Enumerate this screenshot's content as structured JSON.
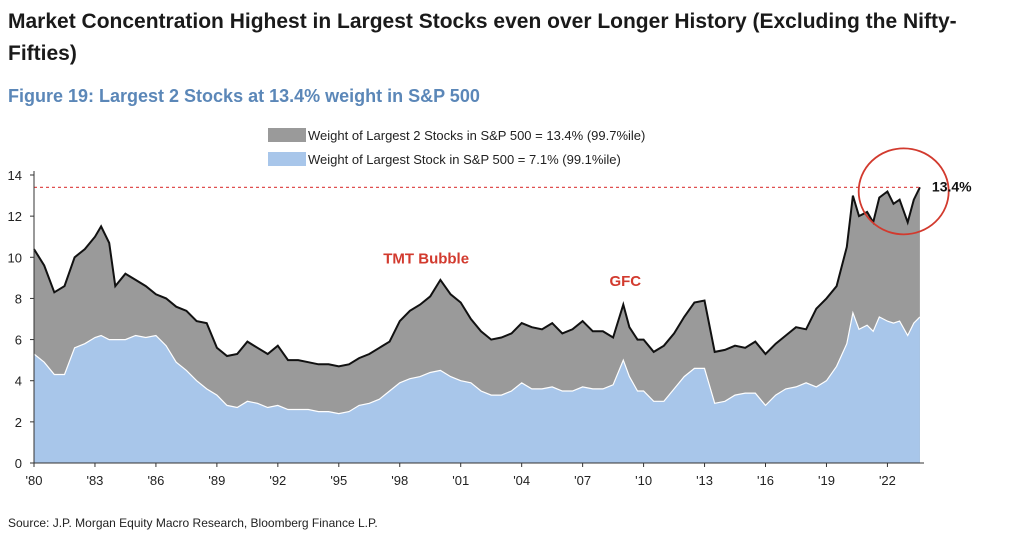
{
  "headline": "Market Concentration Highest in Largest Stocks even over Longer History (Excluding the Nifty-Fifties)",
  "figure_title": "Figure 19: Largest 2 Stocks at 13.4% weight in S&P 500",
  "source": "Source: J.P. Morgan Equity Macro Research, Bloomberg Finance L.P.",
  "colors": {
    "top2_fill": "#9a9a9a",
    "top1_fill": "#a8c6ea",
    "top2_line": "#111111",
    "top1_line": "#ffffff",
    "reference_line": "#e05050",
    "circle": "#d23a2e",
    "annotation": "#d23a2e"
  },
  "chart_data": {
    "type": "area",
    "x_tick_labels": [
      "'80",
      "'83",
      "'86",
      "'89",
      "'92",
      "'95",
      "'98",
      "'01",
      "'04",
      "'07",
      "'10",
      "'13",
      "'16",
      "'19",
      "'22"
    ],
    "x_tick_years": [
      1980,
      1983,
      1986,
      1989,
      1992,
      1995,
      1998,
      2001,
      2004,
      2007,
      2010,
      2013,
      2016,
      2019,
      2022
    ],
    "xlim": [
      1980,
      2023.8
    ],
    "ylim": [
      0,
      14
    ],
    "y_ticks": [
      0,
      2,
      4,
      6,
      8,
      10,
      12,
      14
    ],
    "grid": false,
    "legend_position": "top-center",
    "reference_value": 13.4,
    "reference_label": "13.4%",
    "annotations": [
      {
        "text": "TMT Bubble",
        "x": 1999.3,
        "y": 9.7
      },
      {
        "text": "GFC",
        "x": 2009.1,
        "y": 8.6
      }
    ],
    "x": [
      1980,
      1980.5,
      1981,
      1981.5,
      1982,
      1982.5,
      1983,
      1983.3,
      1983.7,
      1984,
      1984.5,
      1985,
      1985.5,
      1986,
      1986.5,
      1987,
      1987.5,
      1988,
      1988.5,
      1989,
      1989.5,
      1990,
      1990.5,
      1991,
      1991.5,
      1992,
      1992.5,
      1993,
      1993.5,
      1994,
      1994.5,
      1995,
      1995.5,
      1996,
      1996.5,
      1997,
      1997.5,
      1998,
      1998.5,
      1999,
      1999.5,
      2000,
      2000.5,
      2001,
      2001.5,
      2002,
      2002.5,
      2003,
      2003.5,
      2004,
      2004.5,
      2005,
      2005.5,
      2006,
      2006.5,
      2007,
      2007.5,
      2008,
      2008.5,
      2009,
      2009.3,
      2009.7,
      2010,
      2010.5,
      2011,
      2011.5,
      2012,
      2012.5,
      2013,
      2013.5,
      2014,
      2014.5,
      2015,
      2015.5,
      2016,
      2016.5,
      2017,
      2017.5,
      2018,
      2018.5,
      2019,
      2019.5,
      2020,
      2020.3,
      2020.6,
      2021,
      2021.3,
      2021.6,
      2022,
      2022.3,
      2022.6,
      2023,
      2023.3,
      2023.6
    ],
    "series": [
      {
        "name": "Weight of Largest 2 Stocks in S&P 500 = 13.4% (99.7%ile)",
        "values": [
          10.4,
          9.6,
          8.3,
          8.6,
          10.0,
          10.4,
          11.0,
          11.5,
          10.7,
          8.6,
          9.2,
          8.9,
          8.6,
          8.2,
          8.0,
          7.6,
          7.4,
          6.9,
          6.8,
          5.6,
          5.2,
          5.3,
          5.9,
          5.6,
          5.3,
          5.7,
          5.0,
          5.0,
          4.9,
          4.8,
          4.8,
          4.7,
          4.8,
          5.1,
          5.3,
          5.6,
          5.9,
          6.9,
          7.4,
          7.7,
          8.1,
          8.9,
          8.2,
          7.8,
          7.0,
          6.4,
          6.0,
          6.1,
          6.3,
          6.8,
          6.6,
          6.5,
          6.8,
          6.3,
          6.5,
          6.9,
          6.4,
          6.4,
          6.1,
          7.7,
          6.6,
          6.0,
          6.0,
          5.4,
          5.7,
          6.3,
          7.1,
          7.8,
          7.9,
          5.4,
          5.5,
          5.7,
          5.6,
          5.9,
          5.3,
          5.8,
          6.2,
          6.6,
          6.5,
          7.5,
          8.0,
          8.6,
          10.5,
          13.0,
          12.0,
          12.2,
          11.7,
          12.9,
          13.2,
          12.6,
          12.8,
          11.7,
          12.8,
          13.4
        ]
      },
      {
        "name": "Weight of Largest Stock in S&P 500 = 7.1% (99.1%ile)",
        "values": [
          5.3,
          4.9,
          4.3,
          4.3,
          5.6,
          5.8,
          6.1,
          6.2,
          6.0,
          6.0,
          6.0,
          6.2,
          6.1,
          6.2,
          5.7,
          4.9,
          4.5,
          4.0,
          3.6,
          3.3,
          2.8,
          2.7,
          3.0,
          2.9,
          2.7,
          2.8,
          2.6,
          2.6,
          2.6,
          2.5,
          2.5,
          2.4,
          2.5,
          2.8,
          2.9,
          3.1,
          3.5,
          3.9,
          4.1,
          4.2,
          4.4,
          4.5,
          4.2,
          4.0,
          3.9,
          3.5,
          3.3,
          3.3,
          3.5,
          3.9,
          3.6,
          3.6,
          3.7,
          3.5,
          3.5,
          3.7,
          3.6,
          3.6,
          3.8,
          5.0,
          4.2,
          3.5,
          3.5,
          3.0,
          3.0,
          3.6,
          4.2,
          4.6,
          4.6,
          2.9,
          3.0,
          3.3,
          3.4,
          3.4,
          2.8,
          3.3,
          3.6,
          3.7,
          3.9,
          3.7,
          4.0,
          4.7,
          5.8,
          7.3,
          6.5,
          6.7,
          6.4,
          7.1,
          6.9,
          6.8,
          6.9,
          6.2,
          6.8,
          7.1
        ]
      }
    ]
  }
}
